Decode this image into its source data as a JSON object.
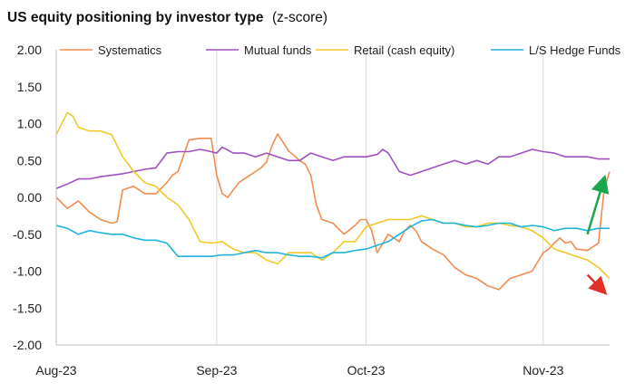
{
  "chart_data": {
    "type": "line",
    "title": "US equity positioning by investor type",
    "title_suffix": "(z-score)",
    "xlabel": "",
    "ylabel": "",
    "ylim": [
      -2,
      2
    ],
    "yticks": [
      "2.00",
      "1.50",
      "1.00",
      "0.50",
      "0.00",
      "-0.50",
      "-1.00",
      "-1.50",
      "-2.00"
    ],
    "ytick_values": [
      2,
      1.5,
      1,
      0.5,
      0,
      -0.5,
      -1,
      -1.5,
      -2
    ],
    "xlim": [
      0,
      100
    ],
    "xtick_labels": [
      "Aug-23",
      "Sep-23",
      "Oct-23",
      "Nov-23"
    ],
    "xtick_values": [
      0,
      29,
      56,
      88
    ],
    "grid": "vertical month lines",
    "legend_position": "top",
    "series": [
      {
        "name": "Systematics",
        "color": "#F08C4E",
        "x": [
          0,
          2,
          4,
          6,
          8,
          10,
          11,
          12,
          14,
          16,
          18,
          20,
          21,
          22,
          24,
          26,
          27,
          28,
          29,
          30,
          31,
          32,
          33,
          34,
          35,
          36,
          37,
          38,
          39,
          40,
          42,
          44,
          45,
          46,
          47,
          48,
          50,
          52,
          54,
          55,
          56,
          57,
          58,
          60,
          61,
          62,
          63,
          64,
          65,
          66,
          68,
          70,
          72,
          74,
          76,
          78,
          80,
          82,
          84,
          86,
          88,
          89,
          90,
          91,
          92,
          93,
          94,
          96,
          98,
          99,
          100
        ],
        "y": [
          0.0,
          -0.15,
          -0.05,
          -0.2,
          -0.3,
          -0.35,
          -0.33,
          0.1,
          0.15,
          0.05,
          0.05,
          0.2,
          0.3,
          0.35,
          0.78,
          0.8,
          0.8,
          0.8,
          0.3,
          0.05,
          0.0,
          0.1,
          0.2,
          0.25,
          0.3,
          0.35,
          0.4,
          0.48,
          0.7,
          0.86,
          0.63,
          0.5,
          0.45,
          0.3,
          -0.1,
          -0.3,
          -0.35,
          -0.5,
          -0.38,
          -0.3,
          -0.3,
          -0.45,
          -0.75,
          -0.5,
          -0.55,
          -0.6,
          -0.45,
          -0.38,
          -0.45,
          -0.6,
          -0.7,
          -0.78,
          -0.95,
          -1.05,
          -1.1,
          -1.2,
          -1.25,
          -1.1,
          -1.05,
          -1.0,
          -0.75,
          -0.7,
          -0.62,
          -0.55,
          -0.62,
          -0.6,
          -0.7,
          -0.72,
          -0.62,
          0.1,
          0.35
        ]
      },
      {
        "name": "Mutual funds",
        "color": "#A050C0",
        "x": [
          0,
          2,
          4,
          6,
          8,
          10,
          12,
          14,
          16,
          18,
          20,
          22,
          24,
          26,
          28,
          29,
          30,
          32,
          34,
          36,
          38,
          40,
          42,
          44,
          46,
          48,
          50,
          52,
          54,
          56,
          58,
          59,
          60,
          62,
          64,
          66,
          68,
          70,
          72,
          74,
          76,
          78,
          80,
          82,
          84,
          86,
          88,
          90,
          92,
          94,
          96,
          98,
          100
        ],
        "y": [
          0.12,
          0.18,
          0.25,
          0.25,
          0.28,
          0.3,
          0.32,
          0.35,
          0.38,
          0.4,
          0.6,
          0.62,
          0.62,
          0.65,
          0.62,
          0.6,
          0.68,
          0.6,
          0.6,
          0.55,
          0.6,
          0.55,
          0.5,
          0.5,
          0.6,
          0.55,
          0.5,
          0.55,
          0.55,
          0.55,
          0.58,
          0.65,
          0.6,
          0.35,
          0.3,
          0.35,
          0.4,
          0.45,
          0.5,
          0.45,
          0.5,
          0.45,
          0.55,
          0.55,
          0.6,
          0.65,
          0.62,
          0.6,
          0.55,
          0.55,
          0.55,
          0.52,
          0.52
        ]
      },
      {
        "name": "Retail (cash equity)",
        "color": "#F0C828",
        "x": [
          0,
          2,
          3,
          4,
          6,
          8,
          10,
          12,
          14,
          16,
          18,
          20,
          22,
          24,
          26,
          28,
          30,
          32,
          34,
          36,
          38,
          40,
          42,
          44,
          46,
          48,
          50,
          52,
          54,
          56,
          58,
          60,
          62,
          64,
          66,
          68,
          70,
          72,
          74,
          76,
          78,
          80,
          82,
          84,
          86,
          88,
          90,
          92,
          94,
          96,
          98,
          100
        ],
        "y": [
          0.85,
          1.15,
          1.1,
          0.95,
          0.9,
          0.9,
          0.85,
          0.55,
          0.35,
          0.2,
          0.15,
          0.0,
          -0.1,
          -0.3,
          -0.6,
          -0.62,
          -0.6,
          -0.7,
          -0.75,
          -0.75,
          -0.85,
          -0.9,
          -0.75,
          -0.75,
          -0.75,
          -0.85,
          -0.75,
          -0.6,
          -0.6,
          -0.4,
          -0.35,
          -0.3,
          -0.3,
          -0.3,
          -0.25,
          -0.3,
          -0.35,
          -0.35,
          -0.4,
          -0.4,
          -0.35,
          -0.35,
          -0.38,
          -0.4,
          -0.45,
          -0.55,
          -0.7,
          -0.75,
          -0.8,
          -0.85,
          -0.95,
          -1.1
        ]
      },
      {
        "name": "L/S Hedge Funds",
        "color": "#1EB4DC",
        "x": [
          0,
          2,
          4,
          6,
          8,
          10,
          12,
          14,
          16,
          18,
          20,
          22,
          24,
          26,
          28,
          30,
          32,
          34,
          36,
          38,
          40,
          42,
          44,
          46,
          48,
          50,
          52,
          54,
          56,
          58,
          60,
          62,
          64,
          66,
          68,
          70,
          72,
          74,
          76,
          78,
          80,
          82,
          84,
          86,
          88,
          90,
          92,
          94,
          96,
          98,
          100
        ],
        "y": [
          -0.38,
          -0.42,
          -0.5,
          -0.45,
          -0.48,
          -0.5,
          -0.5,
          -0.55,
          -0.58,
          -0.58,
          -0.62,
          -0.8,
          -0.8,
          -0.8,
          -0.8,
          -0.78,
          -0.78,
          -0.75,
          -0.72,
          -0.75,
          -0.75,
          -0.78,
          -0.8,
          -0.8,
          -0.82,
          -0.75,
          -0.75,
          -0.72,
          -0.7,
          -0.65,
          -0.6,
          -0.5,
          -0.4,
          -0.32,
          -0.3,
          -0.35,
          -0.35,
          -0.38,
          -0.4,
          -0.38,
          -0.35,
          -0.35,
          -0.4,
          -0.38,
          -0.4,
          -0.45,
          -0.42,
          -0.42,
          -0.45,
          -0.42,
          -0.42
        ]
      }
    ],
    "annotations": [
      {
        "name": "green-up-arrow",
        "color": "#1AA64A",
        "from": [
          96,
          -0.5
        ],
        "to": [
          99,
          0.25
        ]
      },
      {
        "name": "red-down-arrow",
        "color": "#E0302A",
        "from": [
          96,
          -1.05
        ],
        "to": [
          99,
          -1.28
        ]
      }
    ]
  }
}
